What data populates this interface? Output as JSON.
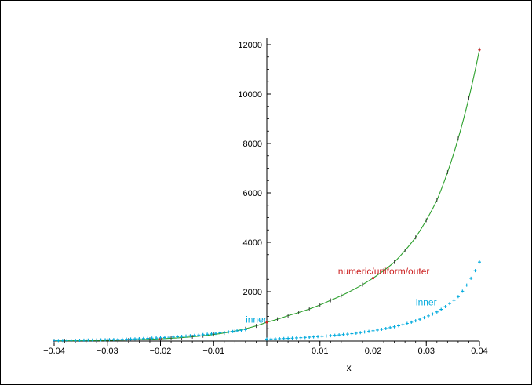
{
  "chart_data": {
    "type": "line",
    "title": "",
    "xlabel": "x",
    "ylabel": "",
    "xlim": [
      -0.04,
      0.04
    ],
    "ylim": [
      0,
      12000
    ],
    "x_ticks": [
      "−0.04",
      "−0.03",
      "−0.02",
      "−0.01",
      "0.01",
      "0.02",
      "0.03",
      "0.04"
    ],
    "x_tick_values": [
      -0.04,
      -0.03,
      -0.02,
      -0.01,
      0.01,
      0.02,
      0.03,
      0.04
    ],
    "y_ticks": [
      "2000",
      "4000",
      "6000",
      "8000",
      "10000",
      "12000"
    ],
    "y_tick_values": [
      2000,
      4000,
      6000,
      8000,
      10000,
      12000
    ],
    "grid": false,
    "series": [
      {
        "name": "numeric/uniform/outer",
        "color": "#2ca02c",
        "marker_color": "#cc2222",
        "style": "line-with-markers",
        "x": [
          -0.04,
          -0.036,
          -0.032,
          -0.028,
          -0.024,
          -0.02,
          -0.016,
          -0.012,
          -0.008,
          -0.004,
          0.0,
          0.004,
          0.008,
          0.012,
          0.016,
          0.02,
          0.024,
          0.028,
          0.032,
          0.036,
          0.04
        ],
        "y": [
          10,
          16,
          24,
          38,
          59,
          92,
          140,
          215,
          330,
          500,
          760,
          1030,
          1300,
          1650,
          2050,
          2550,
          3200,
          4200,
          5700,
          8200,
          11800
        ]
      },
      {
        "name": "inner",
        "color": "#00aadd",
        "style": "markers",
        "x": [
          -0.04,
          -0.036,
          -0.032,
          -0.028,
          -0.024,
          -0.02,
          -0.016,
          -0.012,
          -0.008,
          -0.004,
          0.0,
          0.004,
          0.008,
          0.012,
          0.016,
          0.02,
          0.024,
          0.028,
          0.032,
          0.036,
          0.04
        ],
        "y": [
          20,
          30,
          45,
          65,
          95,
          135,
          190,
          260,
          350,
          460,
          80,
          110,
          160,
          220,
          300,
          420,
          580,
          820,
          1180,
          1800,
          3200
        ]
      }
    ],
    "annotations": [
      {
        "text": "numeric/uniform/outer",
        "color": "#cc2222",
        "x": 0.022,
        "y": 2700
      },
      {
        "text": "inner",
        "color": "#00aadd",
        "x": 0.03,
        "y": 1450
      },
      {
        "text": "inner",
        "color": "#00aadd",
        "x": -0.002,
        "y": 750
      }
    ]
  }
}
